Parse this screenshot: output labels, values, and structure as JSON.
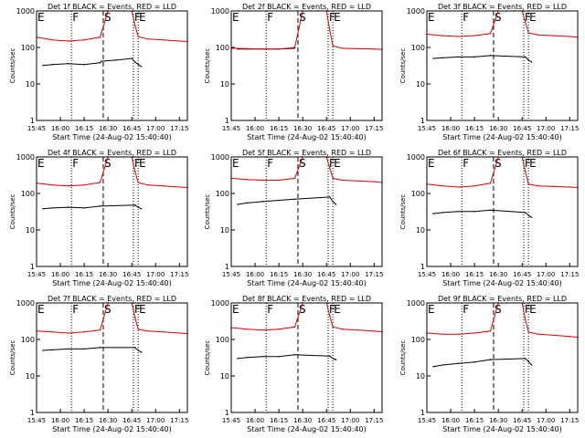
{
  "figure": {
    "background": "#ffffff",
    "colors": {
      "events": "#000000",
      "lld": "#dd0000",
      "axes": "#000000"
    }
  },
  "shared": {
    "xticks": [
      "15:45",
      "16:00",
      "16:15",
      "16:30",
      "16:45",
      "17:00",
      "17:15"
    ],
    "yticks": [
      "1",
      "10",
      "100",
      "1000"
    ],
    "ylabel": "Counts/sec",
    "xlabel": "Start Time (24-Aug-02 15:40:40)",
    "markers": [
      {
        "label": "E",
        "t": 0
      },
      {
        "label": "F",
        "t": 22
      },
      {
        "label": "S",
        "t": 42
      },
      {
        "label": "F",
        "t": 61
      },
      {
        "label": "E",
        "t": 64
      }
    ]
  },
  "chart_data": [
    {
      "type": "line",
      "title": "Det 1f BLACK = Events, RED = LLD",
      "x_units": "minutes after 15:45",
      "xlim": [
        0,
        95
      ],
      "ylim": [
        1,
        1000
      ],
      "yscale": "log",
      "series": [
        {
          "name": "Events",
          "x": [
            4,
            10,
            20,
            30,
            40,
            41,
            50,
            60,
            62,
            64,
            66
          ],
          "values": [
            32,
            34,
            36,
            34,
            38,
            42,
            45,
            50,
            40,
            34,
            30
          ]
        },
        {
          "name": "LLD",
          "x": [
            0,
            10,
            20,
            30,
            40,
            45,
            50,
            55,
            60,
            62,
            64,
            70,
            80,
            90,
            95
          ],
          "values": [
            190,
            160,
            150,
            160,
            190,
            1000,
            1000,
            1000,
            1000,
            400,
            200,
            170,
            160,
            150,
            145
          ]
        }
      ]
    },
    {
      "type": "line",
      "title": "Det 2f BLACK = Events, RED = LLD",
      "x_units": "minutes after 15:45",
      "xlim": [
        0,
        95
      ],
      "ylim": [
        1,
        1000
      ],
      "yscale": "log",
      "series": [
        {
          "name": "Events",
          "x": [
            4,
            10,
            20,
            30,
            40
          ],
          "values": [
            90,
            90,
            90,
            90,
            95
          ]
        },
        {
          "name": "LLD",
          "x": [
            0,
            10,
            20,
            30,
            40,
            45,
            50,
            55,
            60,
            62,
            64,
            70,
            80,
            90,
            95
          ],
          "values": [
            95,
            92,
            90,
            90,
            100,
            1000,
            1000,
            1000,
            1000,
            300,
            110,
            95,
            92,
            90,
            88
          ]
        }
      ]
    },
    {
      "type": "line",
      "title": "Det 3f BLACK = Events, RED = LLD",
      "x_units": "minutes after 15:45",
      "xlim": [
        0,
        95
      ],
      "ylim": [
        1,
        1000
      ],
      "yscale": "log",
      "series": [
        {
          "name": "Events",
          "x": [
            4,
            10,
            20,
            30,
            40,
            62,
            64,
            66
          ],
          "values": [
            50,
            52,
            55,
            55,
            60,
            55,
            45,
            40
          ]
        },
        {
          "name": "LLD",
          "x": [
            0,
            10,
            20,
            30,
            40,
            45,
            50,
            55,
            60,
            62,
            64,
            70,
            80,
            90,
            95
          ],
          "values": [
            230,
            210,
            200,
            210,
            240,
            1000,
            1000,
            1000,
            1000,
            500,
            250,
            220,
            210,
            200,
            190
          ]
        }
      ]
    },
    {
      "type": "line",
      "title": "Det 4f BLACK = Events, RED = LLD",
      "x_units": "minutes after 15:45",
      "xlim": [
        0,
        95
      ],
      "ylim": [
        1,
        1000
      ],
      "yscale": "log",
      "series": [
        {
          "name": "Events",
          "x": [
            4,
            10,
            20,
            30,
            40,
            62,
            64,
            66
          ],
          "values": [
            38,
            40,
            42,
            40,
            45,
            48,
            42,
            38
          ]
        },
        {
          "name": "LLD",
          "x": [
            0,
            10,
            20,
            30,
            40,
            45,
            50,
            55,
            60,
            62,
            64,
            70,
            80,
            90,
            95
          ],
          "values": [
            190,
            170,
            160,
            170,
            200,
            1000,
            1000,
            1000,
            1000,
            400,
            200,
            170,
            160,
            150,
            145
          ]
        }
      ]
    },
    {
      "type": "line",
      "title": "Det 5f BLACK = Events, RED = LLD",
      "x_units": "minutes after 15:45",
      "xlim": [
        0,
        95
      ],
      "ylim": [
        1,
        1000
      ],
      "yscale": "log",
      "series": [
        {
          "name": "Events",
          "x": [
            4,
            10,
            20,
            30,
            40,
            62,
            64,
            66
          ],
          "values": [
            50,
            55,
            60,
            65,
            70,
            80,
            60,
            50
          ]
        },
        {
          "name": "LLD",
          "x": [
            0,
            10,
            20,
            30,
            40,
            45,
            50,
            55,
            60,
            62,
            64,
            70,
            80,
            90,
            95
          ],
          "values": [
            260,
            240,
            230,
            230,
            260,
            1000,
            1000,
            1000,
            1000,
            500,
            260,
            230,
            220,
            210,
            200
          ]
        }
      ]
    },
    {
      "type": "line",
      "title": "Det 6f BLACK = Events, RED = LLD",
      "x_units": "minutes after 15:45",
      "xlim": [
        0,
        95
      ],
      "ylim": [
        1,
        1000
      ],
      "yscale": "log",
      "series": [
        {
          "name": "Events",
          "x": [
            4,
            10,
            20,
            30,
            40,
            62,
            64,
            66
          ],
          "values": [
            28,
            30,
            32,
            32,
            35,
            30,
            25,
            22
          ]
        },
        {
          "name": "LLD",
          "x": [
            0,
            10,
            20,
            30,
            40,
            45,
            50,
            55,
            60,
            62,
            64,
            70,
            80,
            90,
            95
          ],
          "values": [
            180,
            160,
            150,
            160,
            190,
            1000,
            1000,
            1000,
            1000,
            400,
            180,
            160,
            155,
            150,
            145
          ]
        }
      ]
    },
    {
      "type": "line",
      "title": "Det 7f BLACK = Events, RED = LLD",
      "x_units": "minutes after 15:45",
      "xlim": [
        0,
        95
      ],
      "ylim": [
        1,
        1000
      ],
      "yscale": "log",
      "series": [
        {
          "name": "Events",
          "x": [
            4,
            10,
            20,
            30,
            40,
            62,
            64,
            66
          ],
          "values": [
            50,
            52,
            55,
            55,
            60,
            60,
            50,
            45
          ]
        },
        {
          "name": "LLD",
          "x": [
            0,
            10,
            20,
            30,
            40,
            45,
            50,
            55,
            60,
            62,
            64,
            70,
            80,
            90,
            95
          ],
          "values": [
            170,
            160,
            150,
            160,
            180,
            1000,
            1000,
            1000,
            1000,
            400,
            190,
            170,
            160,
            150,
            145
          ]
        }
      ]
    },
    {
      "type": "line",
      "title": "Det 8f BLACK = Events, RED = LLD",
      "x_units": "minutes after 15:45",
      "xlim": [
        0,
        95
      ],
      "ylim": [
        1,
        1000
      ],
      "yscale": "log",
      "series": [
        {
          "name": "Events",
          "x": [
            4,
            10,
            20,
            30,
            40,
            62,
            64,
            66
          ],
          "values": [
            30,
            32,
            34,
            34,
            38,
            35,
            30,
            28
          ]
        },
        {
          "name": "LLD",
          "x": [
            0,
            10,
            20,
            30,
            40,
            45,
            50,
            55,
            60,
            62,
            64,
            70,
            80,
            90,
            95
          ],
          "values": [
            210,
            190,
            180,
            190,
            220,
            1000,
            1000,
            1000,
            1000,
            450,
            220,
            190,
            180,
            170,
            160
          ]
        }
      ]
    },
    {
      "type": "line",
      "title": "Det 9f BLACK = Events, RED = LLD",
      "x_units": "minutes after 15:45",
      "xlim": [
        0,
        95
      ],
      "ylim": [
        1,
        1000
      ],
      "yscale": "log",
      "series": [
        {
          "name": "Events",
          "x": [
            4,
            10,
            20,
            30,
            40,
            62,
            64,
            66
          ],
          "values": [
            18,
            20,
            22,
            24,
            28,
            30,
            25,
            20
          ]
        },
        {
          "name": "LLD",
          "x": [
            0,
            10,
            20,
            30,
            40,
            45,
            50,
            55,
            60,
            62,
            64,
            70,
            80,
            90,
            95
          ],
          "values": [
            150,
            140,
            140,
            150,
            170,
            1000,
            1000,
            1000,
            1000,
            350,
            160,
            140,
            130,
            120,
            115
          ]
        }
      ]
    }
  ]
}
